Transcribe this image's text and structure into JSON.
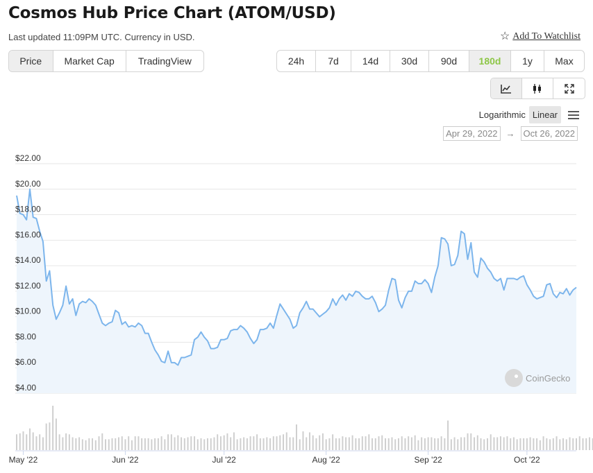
{
  "header": {
    "title": "Cosmos Hub Price Chart (ATOM/USD)",
    "updated": "Last updated 11:09PM UTC. Currency in USD.",
    "watchlist_label": "Add To Watchlist",
    "watchlist_icon": "star-outline-icon"
  },
  "view_tabs": [
    {
      "label": "Price",
      "active": true
    },
    {
      "label": "Market Cap",
      "active": false
    },
    {
      "label": "TradingView",
      "active": false
    }
  ],
  "range_tabs": [
    {
      "label": "24h",
      "active": false
    },
    {
      "label": "7d",
      "active": false
    },
    {
      "label": "14d",
      "active": false
    },
    {
      "label": "30d",
      "active": false
    },
    {
      "label": "90d",
      "active": false
    },
    {
      "label": "180d",
      "active": true
    },
    {
      "label": "1y",
      "active": false
    },
    {
      "label": "Max",
      "active": false
    }
  ],
  "chart_type_icons": [
    "line-chart-icon",
    "candlestick-icon",
    "fullscreen-icon"
  ],
  "scale": {
    "log_label": "Logarithmic",
    "linear_label": "Linear",
    "active": "linear",
    "menu_icon": "hamburger-menu-icon"
  },
  "date_range": {
    "from": "Apr 29, 2022",
    "to": "Oct 26, 2022",
    "arrow": "→"
  },
  "watermark": {
    "text": "CoinGecko",
    "icon": "coingecko-logo-icon"
  },
  "colors": {
    "line": "#7cb5ec",
    "fill": "#eef5fc",
    "volume": "#cfcfcf",
    "grid": "#e6e6e6",
    "accent": "#8dc647"
  },
  "chart_data": {
    "type": "line",
    "ylim": [
      4,
      22
    ],
    "yticks": [
      4,
      6,
      8,
      10,
      12,
      14,
      16,
      18,
      20,
      22
    ],
    "ytick_labels": [
      "$4.00",
      "$6.00",
      "$8.00",
      "$10.00",
      "$12.00",
      "$14.00",
      "$16.00",
      "$18.00",
      "$20.00",
      "$22.00"
    ],
    "xtick_labels": [
      "May '22",
      "Jun '22",
      "Jul '22",
      "Aug '22",
      "Sep '22",
      "Oct '22"
    ],
    "xtick_index": [
      2,
      33,
      63,
      94,
      125,
      155
    ],
    "grid": true,
    "legend": "none",
    "series": [
      {
        "values": [
          19.5,
          18.1,
          18.0,
          17.6,
          20.0,
          17.8,
          17.7,
          16.7,
          15.9,
          12.8,
          13.6,
          10.9,
          9.8,
          10.3,
          10.9,
          12.4,
          11.0,
          11.4,
          10.1,
          11.0,
          11.2,
          11.1,
          11.4,
          11.2,
          10.9,
          10.2,
          9.5,
          9.3,
          9.5,
          9.6,
          10.5,
          10.3,
          9.4,
          9.6,
          9.2,
          9.3,
          9.2,
          9.5,
          9.3,
          8.7,
          8.7,
          8.0,
          7.4,
          7.0,
          6.5,
          6.4,
          7.3,
          6.4,
          6.4,
          6.2,
          6.8,
          6.8,
          6.9,
          7.0,
          8.2,
          8.4,
          8.8,
          8.4,
          8.1,
          7.5,
          7.5,
          7.6,
          8.2,
          8.2,
          8.3,
          8.9,
          9.0,
          9.0,
          9.3,
          9.1,
          8.8,
          8.3,
          7.9,
          8.2,
          9.0,
          9.0,
          9.1,
          9.5,
          9.1,
          10.1,
          11.0,
          10.6,
          10.2,
          9.8,
          9.1,
          9.3,
          10.3,
          10.7,
          11.2,
          10.6,
          10.6,
          10.3,
          10.0,
          10.2,
          10.4,
          10.7,
          11.4,
          10.9,
          11.4,
          11.7,
          11.3,
          11.8,
          11.6,
          12.0,
          11.9,
          11.6,
          11.4,
          11.4,
          11.6,
          11.1,
          10.4,
          10.6,
          10.9,
          12.1,
          13.0,
          12.9,
          11.3,
          10.7,
          11.5,
          12.0,
          12.0,
          12.8,
          12.6,
          12.6,
          12.9,
          12.6,
          11.9,
          13.1,
          14.0,
          16.2,
          16.1,
          15.7,
          14.0,
          14.1,
          14.8,
          16.7,
          16.5,
          14.5,
          15.8,
          13.5,
          13.1,
          14.6,
          14.3,
          13.8,
          13.5,
          13.0,
          12.8,
          13.0,
          12.1,
          13.0,
          13.0,
          13.0,
          12.9,
          13.1,
          13.2,
          12.5,
          12.1,
          11.6,
          11.4,
          11.5,
          11.6,
          12.5,
          12.6,
          11.8,
          11.5,
          11.9,
          11.8,
          12.2,
          11.7,
          12.1,
          12.3
        ]
      }
    ],
    "volume": [
      16,
      17,
      19,
      16,
      22,
      18,
      14,
      16,
      13,
      27,
      28,
      45,
      32,
      16,
      13,
      17,
      16,
      13,
      12,
      13,
      11,
      10,
      12,
      12,
      10,
      14,
      17,
      11,
      11,
      12,
      12,
      13,
      14,
      11,
      14,
      10,
      14,
      14,
      12,
      12,
      12,
      11,
      12,
      12,
      14,
      11,
      16,
      16,
      13,
      15,
      13,
      12,
      13,
      14,
      14,
      11,
      12,
      11,
      12,
      12,
      13,
      16,
      14,
      15,
      17,
      13,
      18,
      11,
      12,
      13,
      12,
      14,
      14,
      16,
      12,
      12,
      13,
      12,
      14,
      14,
      15,
      16,
      18,
      13,
      13,
      26,
      11,
      19,
      13,
      18,
      15,
      12,
      15,
      17,
      11,
      12,
      16,
      12,
      12,
      14,
      13,
      13,
      15,
      12,
      12,
      14,
      14,
      16,
      12,
      12,
      14,
      15,
      12,
      12,
      13,
      11,
      12,
      14,
      12,
      14,
      13,
      15,
      10,
      13,
      12,
      13,
      13,
      12,
      12,
      14,
      12,
      30,
      11,
      13,
      11,
      13,
      13,
      17,
      17,
      13,
      15,
      12,
      11,
      12,
      16,
      13,
      13,
      14,
      13,
      14,
      12,
      13,
      11,
      12,
      12,
      12,
      13,
      12,
      12,
      10,
      14,
      12,
      11,
      12,
      14,
      11,
      12,
      11,
      13,
      12,
      12,
      14,
      12,
      12,
      13,
      12,
      11,
      12,
      14
    ]
  }
}
